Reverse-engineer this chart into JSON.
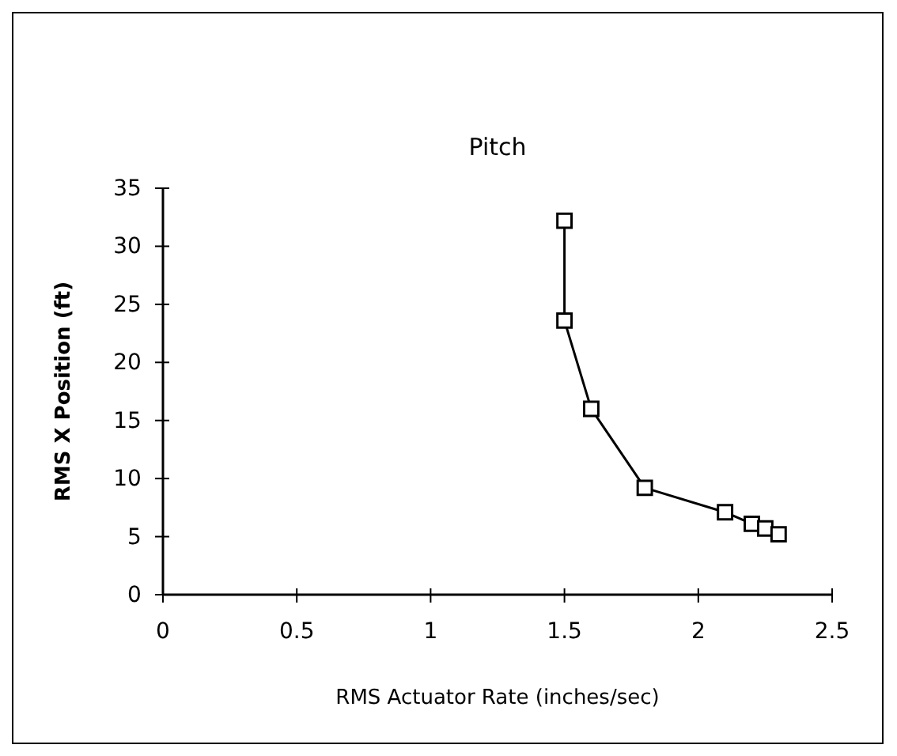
{
  "chart_data": {
    "type": "line",
    "title": "Pitch",
    "xlabel": "RMS Actuator Rate (inches/sec)",
    "ylabel": "RMS X Position (ft)",
    "x": [
      1.5,
      1.5,
      1.6,
      1.8,
      2.1,
      2.2,
      2.25,
      2.3
    ],
    "series": [
      {
        "color": "#000000",
        "values": [
          32.2,
          23.6,
          16,
          9.2,
          7.1,
          6.1,
          5.7,
          5.2
        ]
      }
    ],
    "xlim": [
      0,
      2.5
    ],
    "xticks": [
      0,
      0.5,
      1,
      1.5,
      2,
      2.5
    ],
    "ylim": [
      0,
      35
    ],
    "yticks": [
      0,
      5,
      10,
      15,
      20,
      25,
      30,
      35
    ],
    "grid": false,
    "marker": "square",
    "line_style": "solid"
  }
}
